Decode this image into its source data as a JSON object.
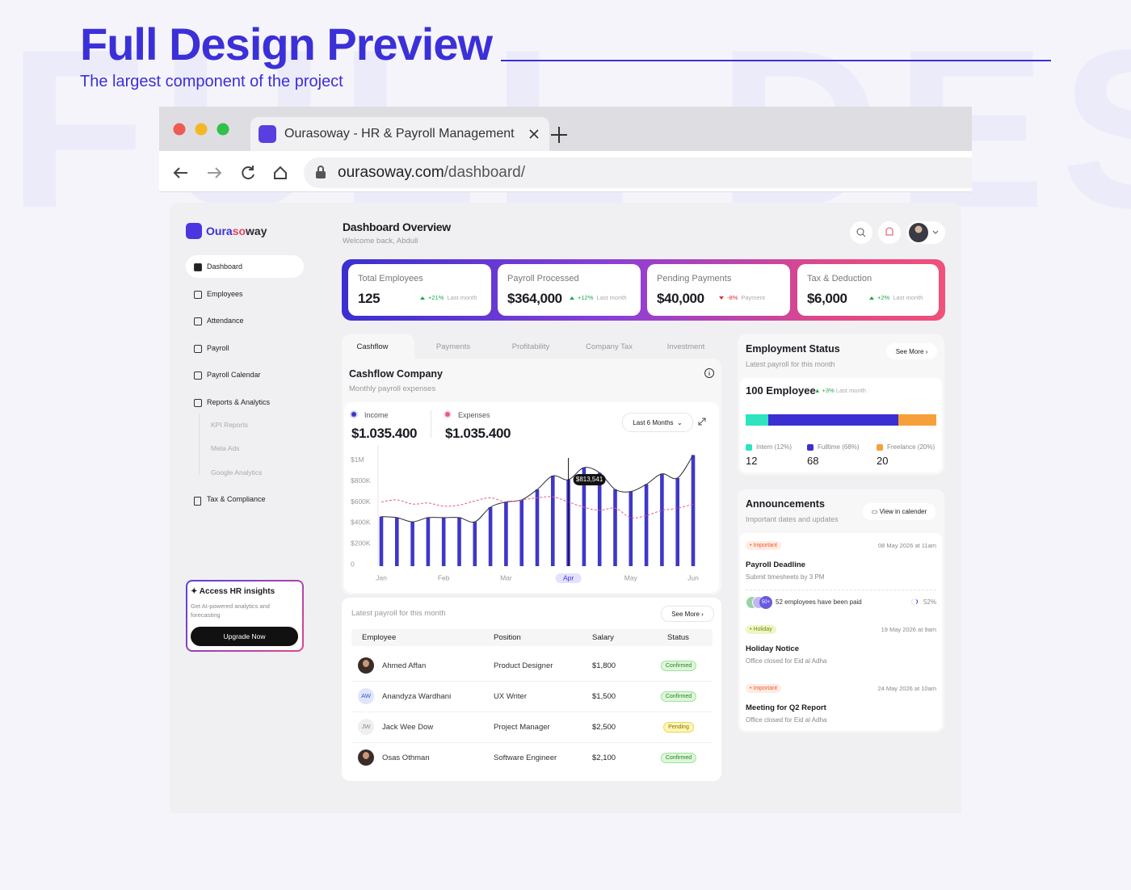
{
  "header": {
    "watermark": "FULL DESIGN",
    "title": "Full Design Preview",
    "subtitle": "The largest component of the project"
  },
  "browser": {
    "tab_title": "Ourasoway - HR & Payroll Management",
    "url_domain": "ourasoway.com",
    "url_path": "/dashboard/"
  },
  "sidebar": {
    "brand": [
      "Oura",
      "so",
      "way"
    ],
    "nav": [
      {
        "label": "Dashboard",
        "active": true
      },
      {
        "label": "Employees",
        "active": false
      },
      {
        "label": "Attendance",
        "active": false
      },
      {
        "label": "Payroll",
        "active": false
      },
      {
        "label": "Payroll Calendar",
        "active": false
      },
      {
        "label": "Reports & Analytics",
        "active": false
      }
    ],
    "subnav": [
      "KPI Reports",
      "Meta Ads",
      "Google Analytics"
    ],
    "nav_bottom": "Tax & Compliance",
    "promo": {
      "title": "Access HR insights",
      "text": "Get AI-powered analytics and forecasting",
      "button": "Upgrade Now"
    }
  },
  "topbar": {
    "title": "Dashboard Overview",
    "subtitle": "Welcome back, Abdull"
  },
  "stats": [
    {
      "label": "Total Employees",
      "value": "125",
      "change": "+21%",
      "note": "Last month",
      "trend": "up"
    },
    {
      "label": "Payroll Processed",
      "value": "$364,000",
      "change": "+12%",
      "note": "Last month",
      "trend": "up"
    },
    {
      "label": "Pending Payments",
      "value": "$40,000",
      "change": "-8%",
      "note": "Payment",
      "trend": "down"
    },
    {
      "label": "Tax & Deduction",
      "value": "$6,000",
      "change": "+2%",
      "note": "Last month",
      "trend": "up"
    }
  ],
  "tabs": [
    "Cashflow",
    "Payments",
    "Profitability",
    "Company Tax",
    "Investment"
  ],
  "cashflow": {
    "title": "Cashflow Company",
    "subtitle": "Monthly payroll expenses",
    "range": "Last 6 Months"
  },
  "chart_data": {
    "type": "bar",
    "categories": [
      "Jan",
      null,
      null,
      null,
      "Feb",
      null,
      null,
      null,
      "Mar",
      null,
      null,
      null,
      "Apr",
      null,
      null,
      null,
      "May",
      null,
      null,
      null,
      "Jun"
    ],
    "series": [
      {
        "name": "Income",
        "type": "bar",
        "color": "#3f37c9",
        "trend_color": "#2a2a3a",
        "total": "$1.035.400",
        "values": [
          460000,
          450000,
          410000,
          450000,
          450000,
          450000,
          410000,
          550000,
          600000,
          620000,
          720000,
          850000,
          813541,
          930000,
          880000,
          720000,
          700000,
          770000,
          870000,
          830000,
          1050000
        ]
      },
      {
        "name": "Expenses",
        "type": "line",
        "color": "#e0607e",
        "total": "$1.035.400",
        "values": [
          600000,
          620000,
          580000,
          590000,
          560000,
          570000,
          610000,
          640000,
          600000,
          620000,
          640000,
          650000,
          600000,
          550000,
          520000,
          540000,
          450000,
          470000,
          520000,
          540000,
          580000
        ]
      }
    ],
    "ylim": [
      0,
      1100000
    ],
    "yticks": [
      0,
      {
        "value": 200000,
        "label": "$200K"
      },
      {
        "value": 400000,
        "label": "$400K"
      },
      {
        "value": 600000,
        "label": "$600K"
      },
      {
        "value": 800000,
        "label": "$800K"
      },
      {
        "value": 1000000,
        "label": "$1M"
      }
    ],
    "grid": false,
    "tooltip": {
      "category": "Apr",
      "label": "$813,541"
    }
  },
  "payroll": {
    "caption": "Latest payroll for this month",
    "button": "See More",
    "columns": [
      "Employee",
      "Position",
      "Salary",
      "Status"
    ],
    "rows": [
      {
        "avatar": "photo",
        "name": "Ahmed Affan",
        "position": "Product Designer",
        "salary": "$1,800",
        "status": "Confirmed",
        "tone": "success"
      },
      {
        "initials": "AW",
        "name": "Anandyza Wardhani",
        "position": "UX Writer",
        "salary": "$1,500",
        "status": "Confirmed",
        "tone": "success"
      },
      {
        "initials": "JW",
        "name": "Jack Wee Dow",
        "position": "Project Manager",
        "salary": "$2,500",
        "status": "Pending",
        "tone": "warning"
      },
      {
        "avatar": "photo",
        "name": "Osas Othman",
        "position": "Software Engineer",
        "salary": "$2,100",
        "status": "Confirmed",
        "tone": "success"
      }
    ]
  },
  "employment": {
    "title": "Employment Status",
    "button": "See More",
    "subtitle": "Latest payroll for this month",
    "total": "100 Employee",
    "change": "+3%",
    "note": "Last month",
    "breakdown": [
      {
        "label": "Intern (12%)",
        "count": 12,
        "color": "#2ee3bf"
      },
      {
        "label": "Fulltime (68%)",
        "count": 68,
        "color": "#3a2fd0"
      },
      {
        "label": "Freelance (20%)",
        "count": 20,
        "color": "#f5a03a"
      }
    ]
  },
  "announcements": {
    "title": "Announcements",
    "button": "View in calender",
    "subtitle": "Important dates and updates",
    "items": [
      {
        "tag": "Important",
        "tone": "important",
        "date": "08 May 2026 at 11am",
        "title": "Payroll Deadline",
        "text": "Submit timesheets by 3 PM",
        "badge": "50+",
        "progress_text": "52 employees have been paid",
        "progress": "52%"
      },
      {
        "tag": "Holiday",
        "tone": "holiday",
        "date": "19 May 2026 at 9am",
        "title": "Holiday Notice",
        "text": "Office closed for Eid al Adha"
      },
      {
        "tag": "Important",
        "tone": "important",
        "date": "24 May 2026 at 10am",
        "title": "Meeting for Q2 Report",
        "text": "Office closed for Eid al Adha"
      }
    ]
  }
}
